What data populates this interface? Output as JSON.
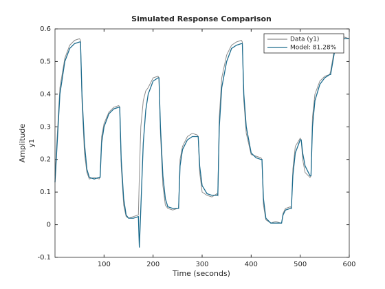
{
  "chart_data": {
    "type": "line",
    "title": "Simulated Response Comparison",
    "xlabel": "Time (seconds)",
    "ylabel": "Amplitude",
    "output_name": "y1",
    "x": [
      0,
      10,
      20,
      30,
      40,
      50,
      52,
      55,
      60,
      65,
      70,
      80,
      90,
      92,
      95,
      100,
      110,
      120,
      130,
      132,
      135,
      140,
      145,
      150,
      160,
      170,
      172,
      175,
      180,
      185,
      190,
      200,
      210,
      212,
      215,
      220,
      225,
      230,
      240,
      250,
      252,
      255,
      260,
      270,
      280,
      290,
      292,
      295,
      300,
      310,
      320,
      330,
      332,
      335,
      340,
      350,
      360,
      370,
      380,
      382,
      385,
      390,
      400,
      410,
      420,
      422,
      425,
      430,
      440,
      450,
      460,
      462,
      465,
      470,
      480,
      482,
      485,
      490,
      500,
      502,
      505,
      510,
      520,
      522,
      525,
      530,
      540,
      550,
      560,
      562,
      570,
      580,
      590,
      600
    ],
    "series": [
      {
        "name": "Data (y1)",
        "color": "#8c8c8c",
        "values": [
          0.15,
          0.42,
          0.51,
          0.55,
          0.565,
          0.57,
          0.565,
          0.38,
          0.22,
          0.16,
          0.14,
          0.145,
          0.14,
          0.15,
          0.27,
          0.31,
          0.345,
          0.36,
          0.365,
          0.36,
          0.18,
          0.06,
          0.025,
          0.02,
          0.025,
          0.03,
          0.15,
          0.3,
          0.38,
          0.41,
          0.42,
          0.45,
          0.455,
          0.45,
          0.28,
          0.12,
          0.06,
          0.05,
          0.045,
          0.05,
          0.05,
          0.2,
          0.24,
          0.27,
          0.28,
          0.275,
          0.27,
          0.16,
          0.1,
          0.09,
          0.085,
          0.095,
          0.09,
          0.33,
          0.45,
          0.52,
          0.55,
          0.56,
          0.565,
          0.56,
          0.38,
          0.28,
          0.215,
          0.21,
          0.205,
          0.2,
          0.06,
          0.015,
          0.005,
          0.01,
          0.005,
          0.005,
          0.035,
          0.05,
          0.055,
          0.05,
          0.17,
          0.24,
          0.265,
          0.26,
          0.2,
          0.16,
          0.145,
          0.15,
          0.33,
          0.4,
          0.44,
          0.455,
          0.46,
          0.47,
          0.54,
          0.565,
          0.575,
          0.57
        ]
      },
      {
        "name": "Model: 81.28%",
        "color": "#1a6a8c",
        "values": [
          0.13,
          0.4,
          0.5,
          0.54,
          0.555,
          0.56,
          0.56,
          0.4,
          0.25,
          0.17,
          0.145,
          0.14,
          0.145,
          0.145,
          0.25,
          0.3,
          0.34,
          0.355,
          0.36,
          0.36,
          0.2,
          0.08,
          0.03,
          0.02,
          0.02,
          0.025,
          -0.07,
          0.05,
          0.25,
          0.35,
          0.4,
          0.44,
          0.45,
          0.45,
          0.3,
          0.15,
          0.08,
          0.055,
          0.05,
          0.05,
          0.05,
          0.18,
          0.23,
          0.26,
          0.27,
          0.27,
          0.27,
          0.18,
          0.12,
          0.095,
          0.09,
          0.09,
          0.09,
          0.3,
          0.42,
          0.5,
          0.54,
          0.55,
          0.555,
          0.555,
          0.4,
          0.3,
          0.22,
          0.205,
          0.2,
          0.2,
          0.08,
          0.02,
          0.005,
          0.005,
          0.005,
          0.005,
          0.03,
          0.045,
          0.05,
          0.05,
          0.15,
          0.22,
          0.26,
          0.26,
          0.22,
          0.18,
          0.15,
          0.15,
          0.3,
          0.38,
          0.43,
          0.45,
          0.46,
          0.46,
          0.53,
          0.56,
          0.57,
          0.57
        ]
      }
    ],
    "xlim": [
      0,
      600
    ],
    "xticks": [
      100,
      200,
      300,
      400,
      500,
      600
    ],
    "ylim": [
      -0.1,
      0.6
    ],
    "yticks": [
      -0.1,
      0,
      0.1,
      0.2,
      0.3,
      0.4,
      0.5,
      0.6
    ],
    "grid": false,
    "legend": "upper right"
  }
}
